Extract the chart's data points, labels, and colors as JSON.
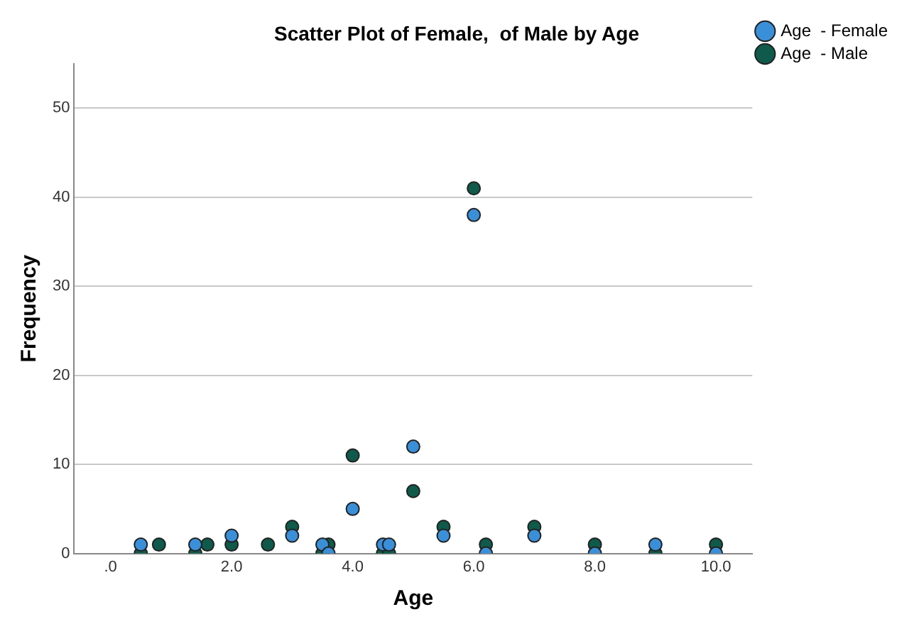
{
  "chart_data": {
    "type": "scatter",
    "title": "Scatter Plot of Female,  of Male by Age",
    "xlabel": "Age",
    "ylabel": "Frequency",
    "xlim": [
      -0.6,
      10.6
    ],
    "xticks": [
      {
        "value": 0,
        "label": ".0"
      },
      {
        "value": 2,
        "label": "2.0"
      },
      {
        "value": 4,
        "label": "4.0"
      },
      {
        "value": 6,
        "label": "6.0"
      },
      {
        "value": 8,
        "label": "8.0"
      },
      {
        "value": 10,
        "label": "10.0"
      }
    ],
    "ylim": [
      0,
      55
    ],
    "yticks": [
      0,
      10,
      20,
      30,
      40,
      50
    ],
    "grid": "y",
    "legend": "top right",
    "marker": "circle",
    "series": [
      {
        "name": "Age  - Female",
        "color": "#3a8fd9",
        "x": [
          0.5,
          1.4,
          2.0,
          3.0,
          3.5,
          3.6,
          4.0,
          4.5,
          4.6,
          5.0,
          5.5,
          6.0,
          6.2,
          7.0,
          8.0,
          9.0,
          10.0
        ],
        "values": [
          1,
          1,
          2,
          2,
          1,
          0,
          5,
          1,
          1,
          12,
          2,
          38,
          0,
          2,
          0,
          1,
          0
        ]
      },
      {
        "name": "Age  - Male",
        "color": "#0f5a4a",
        "x": [
          0.5,
          0.8,
          1.4,
          1.6,
          2.0,
          2.6,
          3.0,
          3.5,
          3.6,
          4.0,
          4.5,
          4.6,
          5.0,
          5.5,
          6.0,
          6.2,
          7.0,
          8.0,
          9.0,
          10.0
        ],
        "values": [
          0,
          1,
          0,
          1,
          1,
          1,
          3,
          0,
          1,
          11,
          0,
          0,
          7,
          3,
          41,
          1,
          3,
          1,
          0,
          1
        ]
      }
    ]
  }
}
